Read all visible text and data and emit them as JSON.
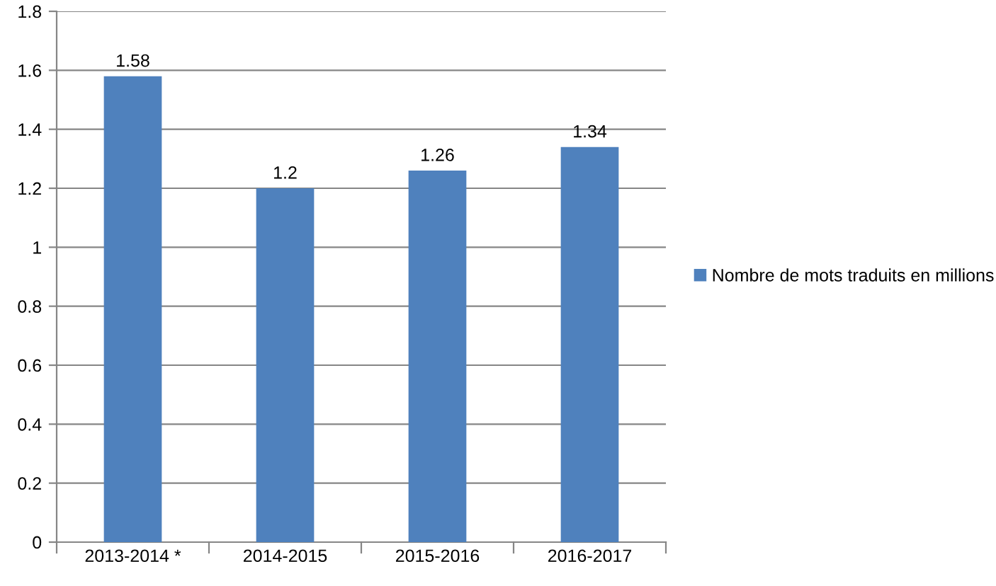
{
  "chart_data": {
    "type": "bar",
    "categories": [
      "2013-2014 *",
      "2014-2015",
      "2015-2016",
      "2016-2017"
    ],
    "series": [
      {
        "name": "Nombre de mots traduits en millions",
        "color": "#4f81bd",
        "values": [
          1.58,
          1.2,
          1.26,
          1.34
        ]
      }
    ],
    "ylim": [
      0,
      1.8
    ],
    "yticks": [
      0,
      0.2,
      0.4,
      0.6,
      0.8,
      1,
      1.2,
      1.4,
      1.6,
      1.8
    ],
    "grid": "y",
    "legend": "right",
    "data_labels": true
  }
}
